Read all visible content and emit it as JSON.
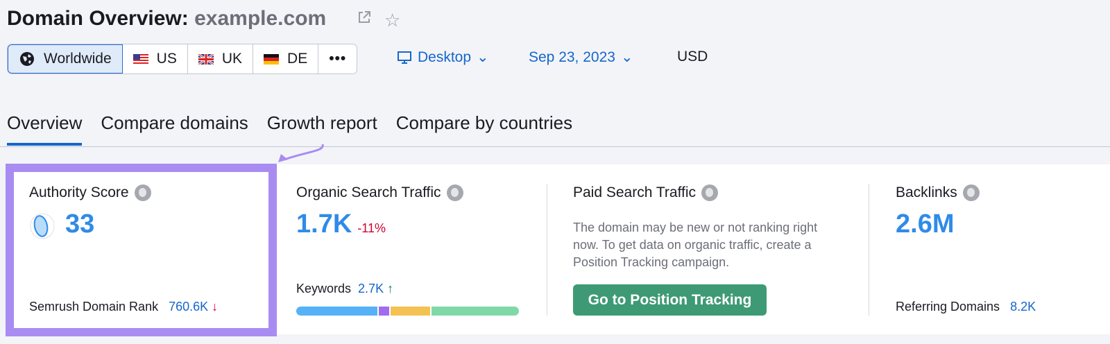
{
  "header": {
    "title": "Domain Overview:",
    "domain": "example.com",
    "external_link_icon": "external-link-icon",
    "star_icon": "star-icon"
  },
  "database": {
    "items": [
      {
        "label": "Worldwide",
        "icon": "globe-icon",
        "active": true
      },
      {
        "label": "US",
        "icon": "us-flag-icon"
      },
      {
        "label": "UK",
        "icon": "uk-flag-icon"
      },
      {
        "label": "DE",
        "icon": "de-flag-icon"
      }
    ],
    "more": "•••"
  },
  "device": {
    "label": "Desktop",
    "icon": "monitor-icon"
  },
  "date": {
    "label": "Sep 23, 2023"
  },
  "currency": "USD",
  "tabs": [
    {
      "label": "Overview",
      "active": true
    },
    {
      "label": "Compare domains"
    },
    {
      "label": "Growth report"
    },
    {
      "label": "Compare by countries"
    }
  ],
  "cards": {
    "authority": {
      "label": "Authority Score",
      "value": "33",
      "rank_label": "Semrush Domain Rank",
      "rank_value": "760.6K",
      "rank_trend": "↓"
    },
    "organic": {
      "label": "Organic Search Traffic",
      "value": "1.7K",
      "change": "-11%",
      "keywords_label": "Keywords",
      "keywords_value": "2.7K",
      "keywords_trend": "↑",
      "distribution": [
        {
          "share": 37,
          "color": "#56b1f7"
        },
        {
          "share": 5,
          "color": "#a06cf0"
        },
        {
          "share": 18,
          "color": "#f4c253"
        },
        {
          "share": 40,
          "color": "#80d8a9"
        }
      ]
    },
    "paid": {
      "label": "Paid Search Traffic",
      "message": "The domain may be new or not ranking right now. To get data on organic traffic, create a Position Tracking campaign.",
      "button": "Go to Position Tracking"
    },
    "backlinks": {
      "label": "Backlinks",
      "value": "2.6M",
      "ref_label": "Referring Domains",
      "ref_value": "8.2K"
    }
  },
  "colors": {
    "accent": "#1566cc",
    "highlight": "#a88cf2",
    "value": "#2f8be8",
    "negative": "#d1002f",
    "positive": "#008a60",
    "button": "#3e9a74"
  }
}
